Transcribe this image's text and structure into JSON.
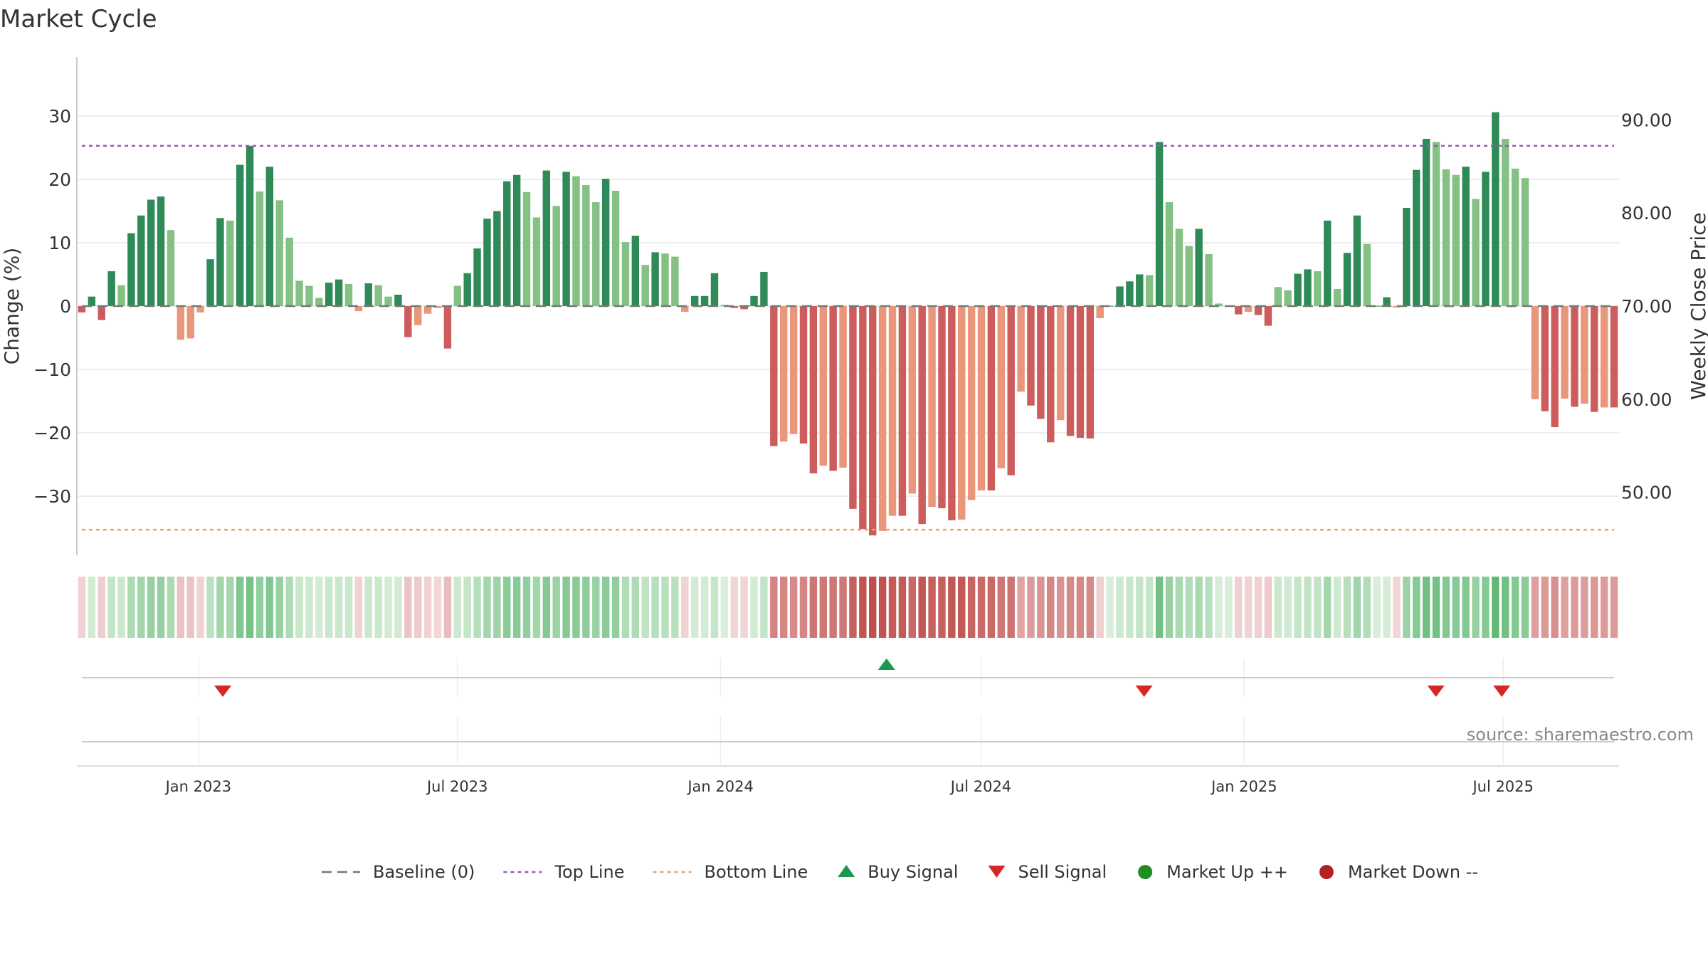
{
  "chart_data": {
    "type": "bar",
    "title": "Market Cycle",
    "ylabel": "Change (%)",
    "y2label": "Weekly Close Price",
    "ylim": [
      -39,
      38
    ],
    "y2lim": [
      39.3,
      96
    ],
    "yticks": [
      30,
      20,
      10,
      0,
      -10,
      -20,
      -30
    ],
    "ytick_labels": [
      "30",
      "20",
      "10",
      "0",
      "−10",
      "−20",
      "−30"
    ],
    "y2ticks": [
      90,
      80,
      70,
      60,
      50
    ],
    "y2tick_labels": [
      "90.00",
      "80.00",
      "70.00",
      "60.00",
      "50.00"
    ],
    "x_start": "2022-10-08",
    "x_end": "2025-09-20",
    "bar_interval_days": 7,
    "xtick_dates": [
      "2023-01-01",
      "2023-07-01",
      "2024-01-01",
      "2024-07-01",
      "2025-01-01",
      "2025-07-01"
    ],
    "xtick_labels": [
      "Jan 2023",
      "Jul 2023",
      "Jan 2024",
      "Jul 2024",
      "Jan 2025",
      "Jul 2025"
    ],
    "grid": true,
    "legend_position": "bottom",
    "values": [
      -1,
      1.5,
      -2.2,
      5.5,
      3.3,
      11.5,
      14.3,
      16.8,
      17.3,
      12,
      -5.3,
      -5.1,
      -1,
      7.4,
      13.9,
      13.5,
      22.3,
      25.3,
      18.1,
      22,
      16.7,
      10.8,
      4,
      3.2,
      1.3,
      3.7,
      4.2,
      3.5,
      -0.8,
      3.6,
      3.3,
      1.5,
      1.8,
      -4.9,
      -3,
      -1.2,
      -0.3,
      -6.7,
      3.2,
      5.2,
      9.1,
      13.8,
      15,
      19.7,
      20.7,
      18,
      14,
      21.4,
      15.8,
      21.2,
      20.5,
      19.1,
      16.4,
      20.1,
      18.2,
      10.1,
      11.1,
      6.5,
      8.5,
      8.3,
      7.8,
      -0.9,
      1.6,
      1.6,
      5.2,
      0.2,
      -0.3,
      -0.5,
      1.6,
      5.4,
      -22.1,
      -21.4,
      -20.2,
      -21.7,
      -26.4,
      -25.2,
      -26,
      -25.5,
      -32,
      -35.2,
      -36.2,
      -35.5,
      -33.1,
      -33.1,
      -29.6,
      -34.4,
      -31.7,
      -31.9,
      -33.8,
      -33.7,
      -30.6,
      -29.1,
      -29.1,
      -25.6,
      -26.7,
      -13.5,
      -15.7,
      -17.8,
      -21.5,
      -18,
      -20.5,
      -20.8,
      -20.9,
      -1.9,
      0.1,
      3.1,
      3.9,
      5,
      4.9,
      25.9,
      16.4,
      12.2,
      9.5,
      12.2,
      8.2,
      0.4,
      0.1,
      -1.3,
      -0.9,
      -1.4,
      -3.1,
      3,
      2.5,
      5.1,
      5.8,
      5.5,
      13.5,
      2.7,
      8.4,
      14.3,
      9.8,
      0.1,
      1.4,
      -0.2,
      15.5,
      21.5,
      26.4,
      25.9,
      21.6,
      20.7,
      22,
      16.9,
      21.2,
      30.6,
      26.4,
      21.7,
      20.2,
      -14.7,
      -16.6,
      -19.1,
      -14.6,
      -15.9,
      -15.4,
      -16.7,
      -16,
      -16
    ],
    "series": [
      {
        "name": "Baseline (0)",
        "type": "hline",
        "value": 0,
        "color": "#777777",
        "dash": "dashed"
      },
      {
        "name": "Top Line",
        "type": "hline",
        "value": 25.3,
        "color": "#9b59b6",
        "dash": "dotted"
      },
      {
        "name": "Bottom Line",
        "type": "hline",
        "value": -35.3,
        "color": "#f0a060",
        "dash": "dotted"
      },
      {
        "name": "Buy Signal",
        "type": "marker",
        "marker": "triangle-up",
        "color": "#1a9850",
        "dates": [
          "2024-04-26"
        ]
      },
      {
        "name": "Sell Signal",
        "type": "marker",
        "marker": "triangle-down",
        "color": "#d62728",
        "dates": [
          "2023-01-18",
          "2024-10-23",
          "2025-05-15",
          "2025-06-30"
        ]
      },
      {
        "name": "Market Up ++",
        "type": "marker",
        "marker": "circle",
        "color": "#228b22",
        "dates": []
      },
      {
        "name": "Market Down --",
        "type": "marker",
        "marker": "circle",
        "color": "#b22222",
        "dates": []
      }
    ],
    "source": "source: sharemaestro.com"
  },
  "colors": {
    "up_dark": "#2e8b57",
    "up_light": "#85c085",
    "down_dark": "#cd5c5c",
    "down_light": "#e9967a",
    "grid": "#e6e6e6",
    "axis": "#cccccc"
  }
}
